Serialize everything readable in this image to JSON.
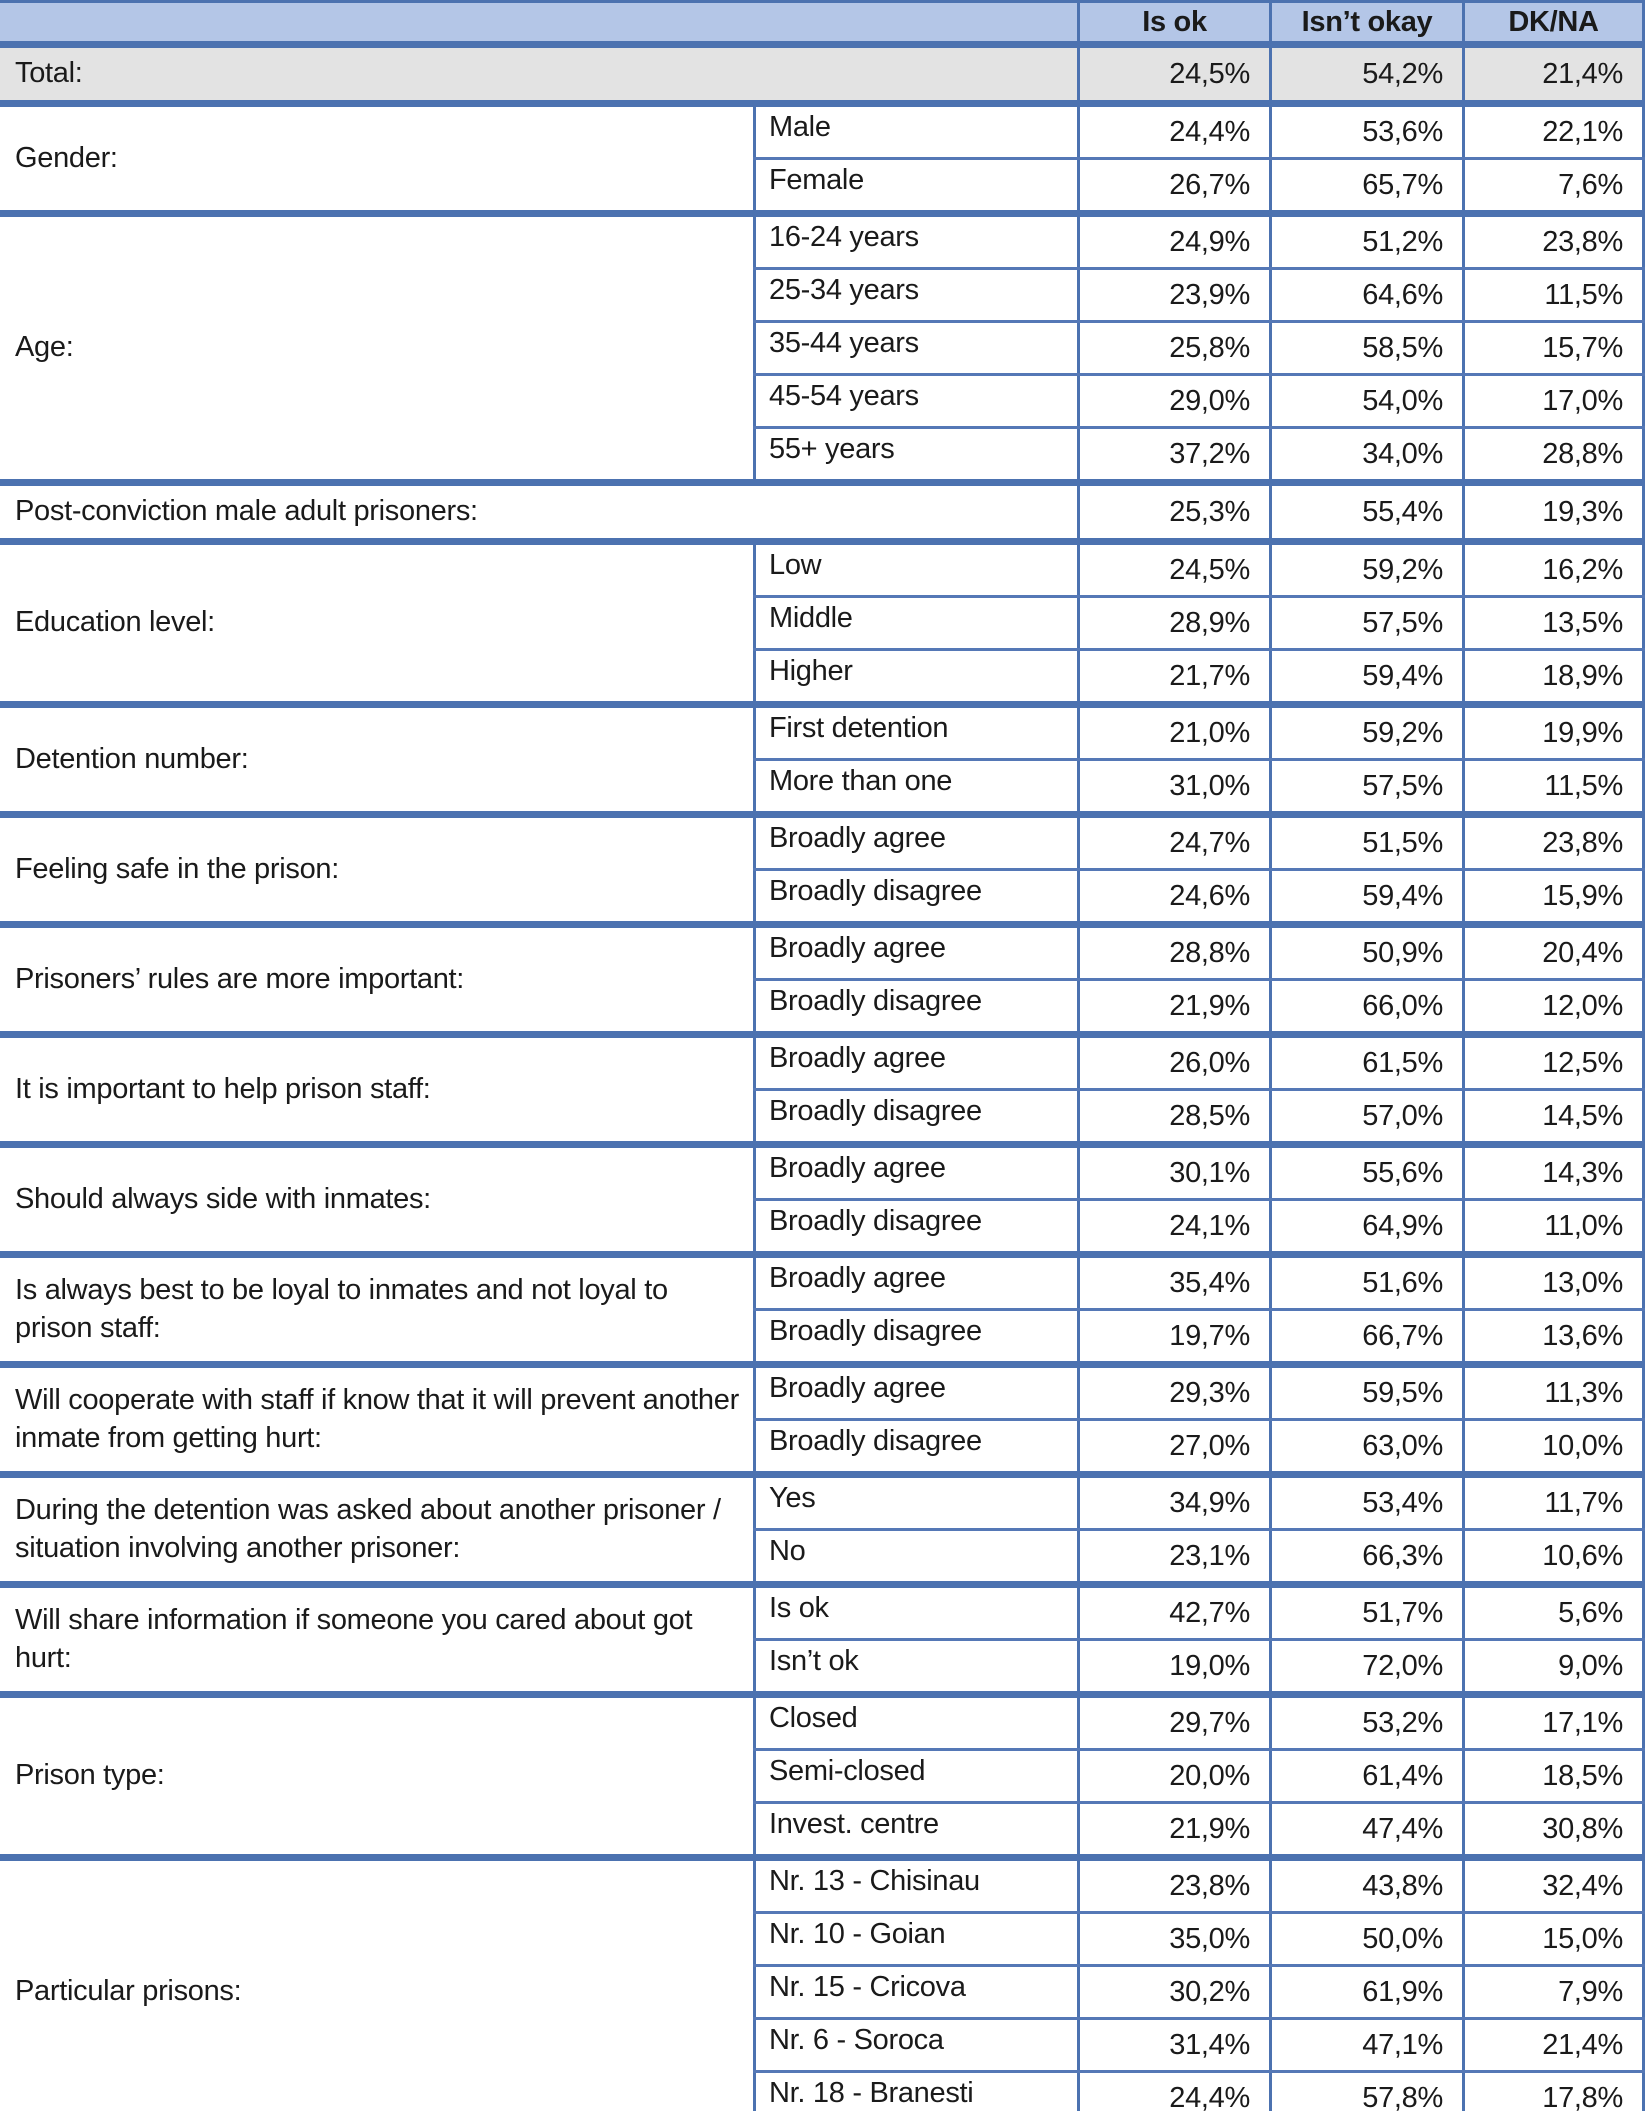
{
  "colors": {
    "header_background": "#B4C6E7",
    "thick_divider": "#4C72B0",
    "thin_row_line": "#5578B6",
    "shaded_row_background": "#E3E3E3",
    "text": "#1a1a1a"
  },
  "table": {
    "columns": [
      "Is ok",
      "Isn’t okay",
      "DK/NA"
    ],
    "groups": [
      {
        "label": "Total:",
        "span": true,
        "shaded": true,
        "rows": [
          {
            "sublabel": "",
            "values": [
              "24,5%",
              "54,2%",
              "21,4%"
            ]
          }
        ]
      },
      {
        "label": "Gender:",
        "rows": [
          {
            "sublabel": "Male",
            "values": [
              "24,4%",
              "53,6%",
              "22,1%"
            ]
          },
          {
            "sublabel": "Female",
            "values": [
              "26,7%",
              "65,7%",
              "7,6%"
            ]
          }
        ]
      },
      {
        "label": "Age:",
        "rows": [
          {
            "sublabel": "16-24 years",
            "values": [
              "24,9%",
              "51,2%",
              "23,8%"
            ]
          },
          {
            "sublabel": "25-34 years",
            "values": [
              "23,9%",
              "64,6%",
              "11,5%"
            ]
          },
          {
            "sublabel": "35-44 years",
            "values": [
              "25,8%",
              "58,5%",
              "15,7%"
            ]
          },
          {
            "sublabel": "45-54 years",
            "values": [
              "29,0%",
              "54,0%",
              "17,0%"
            ]
          },
          {
            "sublabel": "55+ years",
            "values": [
              "37,2%",
              "34,0%",
              "28,8%"
            ]
          }
        ]
      },
      {
        "label": "Post-conviction male adult prisoners:",
        "span": true,
        "rows": [
          {
            "sublabel": "",
            "values": [
              "25,3%",
              "55,4%",
              "19,3%"
            ]
          }
        ]
      },
      {
        "label": "Education level:",
        "rows": [
          {
            "sublabel": "Low",
            "values": [
              "24,5%",
              "59,2%",
              "16,2%"
            ]
          },
          {
            "sublabel": "Middle",
            "values": [
              "28,9%",
              "57,5%",
              "13,5%"
            ]
          },
          {
            "sublabel": "Higher",
            "values": [
              "21,7%",
              "59,4%",
              "18,9%"
            ]
          }
        ]
      },
      {
        "label": "Detention number:",
        "rows": [
          {
            "sublabel": "First detention",
            "values": [
              "21,0%",
              "59,2%",
              "19,9%"
            ]
          },
          {
            "sublabel": "More than one",
            "values": [
              "31,0%",
              "57,5%",
              "11,5%"
            ]
          }
        ]
      },
      {
        "label": "Feeling safe in the prison:",
        "rows": [
          {
            "sublabel": "Broadly agree",
            "values": [
              "24,7%",
              "51,5%",
              "23,8%"
            ]
          },
          {
            "sublabel": "Broadly disagree",
            "values": [
              "24,6%",
              "59,4%",
              "15,9%"
            ]
          }
        ]
      },
      {
        "label": "Prisoners’ rules are more important:",
        "rows": [
          {
            "sublabel": "Broadly agree",
            "values": [
              "28,8%",
              "50,9%",
              "20,4%"
            ]
          },
          {
            "sublabel": "Broadly disagree",
            "values": [
              "21,9%",
              "66,0%",
              "12,0%"
            ]
          }
        ]
      },
      {
        "label": "It is important to help prison staff:",
        "rows": [
          {
            "sublabel": "Broadly agree",
            "values": [
              "26,0%",
              "61,5%",
              "12,5%"
            ]
          },
          {
            "sublabel": "Broadly disagree",
            "values": [
              "28,5%",
              "57,0%",
              "14,5%"
            ]
          }
        ]
      },
      {
        "label": "Should always side with inmates:",
        "rows": [
          {
            "sublabel": "Broadly agree",
            "values": [
              "30,1%",
              "55,6%",
              "14,3%"
            ]
          },
          {
            "sublabel": "Broadly disagree",
            "values": [
              "24,1%",
              "64,9%",
              "11,0%"
            ]
          }
        ]
      },
      {
        "label": "Is always best to be loyal to inmates and not loyal to prison staff:",
        "rows": [
          {
            "sublabel": "Broadly agree",
            "values": [
              "35,4%",
              "51,6%",
              "13,0%"
            ]
          },
          {
            "sublabel": "Broadly disagree",
            "values": [
              "19,7%",
              "66,7%",
              "13,6%"
            ]
          }
        ]
      },
      {
        "label": "Will cooperate with staff if know that it will prevent another inmate from getting hurt:",
        "rows": [
          {
            "sublabel": "Broadly agree",
            "values": [
              "29,3%",
              "59,5%",
              "11,3%"
            ]
          },
          {
            "sublabel": "Broadly disagree",
            "values": [
              "27,0%",
              "63,0%",
              "10,0%"
            ]
          }
        ]
      },
      {
        "label": "During the detention was asked about another prisoner / situation involving another prisoner:",
        "rows": [
          {
            "sublabel": "Yes",
            "values": [
              "34,9%",
              "53,4%",
              "11,7%"
            ]
          },
          {
            "sublabel": "No",
            "values": [
              "23,1%",
              "66,3%",
              "10,6%"
            ]
          }
        ]
      },
      {
        "label": "Will share information if someone you cared about got hurt:",
        "rows": [
          {
            "sublabel": "Is ok",
            "values": [
              "42,7%",
              "51,7%",
              "5,6%"
            ]
          },
          {
            "sublabel": "Isn’t ok",
            "values": [
              "19,0%",
              "72,0%",
              "9,0%"
            ]
          }
        ]
      },
      {
        "label": "Prison type:",
        "rows": [
          {
            "sublabel": "Closed",
            "values": [
              "29,7%",
              "53,2%",
              "17,1%"
            ]
          },
          {
            "sublabel": "Semi-closed",
            "values": [
              "20,0%",
              "61,4%",
              "18,5%"
            ]
          },
          {
            "sublabel": "Invest. centre",
            "values": [
              "21,9%",
              "47,4%",
              "30,8%"
            ]
          }
        ]
      },
      {
        "label": "Particular prisons:",
        "rows": [
          {
            "sublabel": "Nr. 13 - Chisinau",
            "values": [
              "23,8%",
              "43,8%",
              "32,4%"
            ]
          },
          {
            "sublabel": "Nr. 10 - Goian",
            "values": [
              "35,0%",
              "50,0%",
              "15,0%"
            ]
          },
          {
            "sublabel": "Nr. 15 - Cricova",
            "values": [
              "30,2%",
              "61,9%",
              "7,9%"
            ]
          },
          {
            "sublabel": "Nr. 6 - Soroca",
            "values": [
              "31,4%",
              "47,1%",
              "21,4%"
            ]
          },
          {
            "sublabel": "Nr. 18 - Branesti",
            "values": [
              "24,4%",
              "57,8%",
              "17,8%"
            ]
          }
        ]
      }
    ]
  }
}
